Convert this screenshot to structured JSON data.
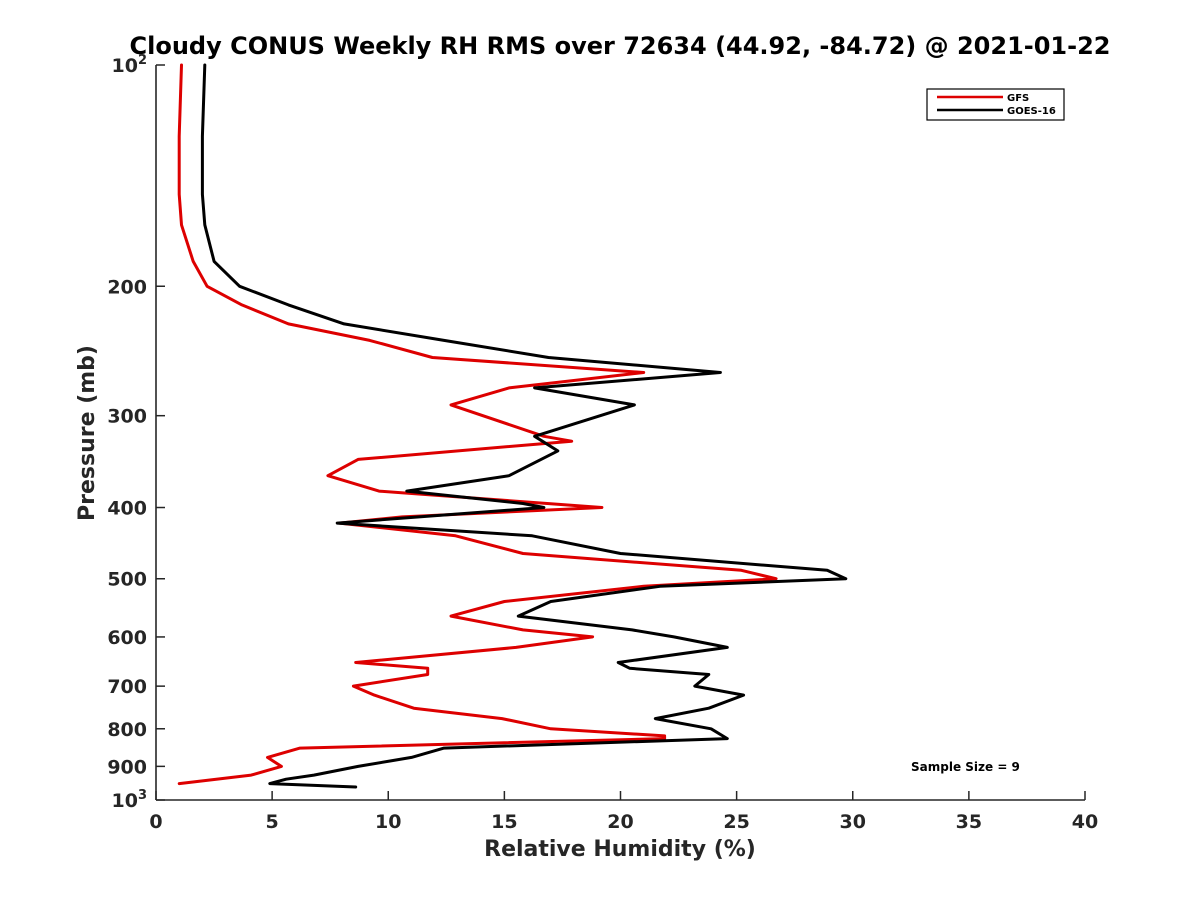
{
  "chart_data": {
    "type": "line",
    "title": "Cloudy CONUS Weekly RH RMS over 72634 (44.92, -84.72) @ 2021-01-22",
    "xlabel": "Relative Humidity (%)",
    "ylabel": "Pressure (mb)",
    "xlim": [
      0,
      40
    ],
    "ylim": [
      100,
      1000
    ],
    "yscale": "log",
    "y_reversed": true,
    "grid": false,
    "legend_position": "top-right",
    "annotation": "Sample Size = 9",
    "x_ticks": [
      "0",
      "5",
      "10",
      "15",
      "20",
      "25",
      "30",
      "35",
      "40"
    ],
    "y_ticks": [
      {
        "value": 100,
        "label": "10",
        "sup": "2"
      },
      {
        "value": 200,
        "label": "200",
        "sup": ""
      },
      {
        "value": 300,
        "label": "300",
        "sup": ""
      },
      {
        "value": 400,
        "label": "400",
        "sup": ""
      },
      {
        "value": 500,
        "label": "500",
        "sup": ""
      },
      {
        "value": 600,
        "label": "600",
        "sup": ""
      },
      {
        "value": 700,
        "label": "700",
        "sup": ""
      },
      {
        "value": 800,
        "label": "800",
        "sup": ""
      },
      {
        "value": 900,
        "label": "900",
        "sup": ""
      },
      {
        "value": 1000,
        "label": "10",
        "sup": "3"
      }
    ],
    "series": [
      {
        "name": "GFS",
        "color": "#dd0000",
        "points": [
          [
            1.1,
            100
          ],
          [
            1.0,
            125
          ],
          [
            1.0,
            150
          ],
          [
            1.1,
            165
          ],
          [
            1.6,
            185
          ],
          [
            2.2,
            200
          ],
          [
            3.7,
            212
          ],
          [
            5.7,
            225
          ],
          [
            9.2,
            237
          ],
          [
            11.9,
            250
          ],
          [
            21.0,
            262
          ],
          [
            15.2,
            275
          ],
          [
            12.7,
            290
          ],
          [
            16.7,
            320
          ],
          [
            17.9,
            325
          ],
          [
            8.7,
            344
          ],
          [
            7.4,
            362
          ],
          [
            9.6,
            380
          ],
          [
            19.2,
            400
          ],
          [
            10.6,
            412
          ],
          [
            7.9,
            420
          ],
          [
            12.9,
            437
          ],
          [
            15.8,
            462
          ],
          [
            25.2,
            487
          ],
          [
            26.7,
            500
          ],
          [
            21.0,
            512
          ],
          [
            15.0,
            537
          ],
          [
            12.7,
            562
          ],
          [
            15.8,
            587
          ],
          [
            18.8,
            600
          ],
          [
            15.5,
            620
          ],
          [
            8.6,
            650
          ],
          [
            11.7,
            662
          ],
          [
            11.7,
            675
          ],
          [
            8.5,
            700
          ],
          [
            9.4,
            720
          ],
          [
            11.1,
            750
          ],
          [
            14.9,
            775
          ],
          [
            17.0,
            800
          ],
          [
            21.9,
            818
          ],
          [
            21.9,
            825
          ],
          [
            6.2,
            850
          ],
          [
            4.8,
            875
          ],
          [
            5.4,
            900
          ],
          [
            4.1,
            925
          ],
          [
            1.0,
            950
          ]
        ]
      },
      {
        "name": "GOES-16",
        "color": "#000000",
        "points": [
          [
            2.1,
            100
          ],
          [
            2.0,
            125
          ],
          [
            2.0,
            150
          ],
          [
            2.1,
            165
          ],
          [
            2.5,
            185
          ],
          [
            3.6,
            200
          ],
          [
            5.7,
            212
          ],
          [
            8.1,
            225
          ],
          [
            12.4,
            237
          ],
          [
            16.9,
            250
          ],
          [
            24.3,
            262
          ],
          [
            16.3,
            275
          ],
          [
            20.6,
            290
          ],
          [
            16.3,
            320
          ],
          [
            17.3,
            335
          ],
          [
            15.2,
            362
          ],
          [
            10.8,
            380
          ],
          [
            15.8,
            395
          ],
          [
            16.7,
            400
          ],
          [
            7.8,
            420
          ],
          [
            16.2,
            437
          ],
          [
            20.0,
            462
          ],
          [
            28.9,
            487
          ],
          [
            29.7,
            500
          ],
          [
            21.7,
            512
          ],
          [
            17.0,
            537
          ],
          [
            15.6,
            562
          ],
          [
            20.5,
            587
          ],
          [
            22.3,
            600
          ],
          [
            24.6,
            620
          ],
          [
            19.9,
            650
          ],
          [
            20.4,
            662
          ],
          [
            23.8,
            675
          ],
          [
            23.2,
            700
          ],
          [
            25.3,
            720
          ],
          [
            23.8,
            750
          ],
          [
            21.5,
            775
          ],
          [
            23.9,
            800
          ],
          [
            24.6,
            825
          ],
          [
            12.4,
            850
          ],
          [
            11.0,
            875
          ],
          [
            8.7,
            900
          ],
          [
            6.8,
            925
          ],
          [
            5.6,
            937
          ],
          [
            4.9,
            950
          ],
          [
            8.6,
            960
          ]
        ]
      }
    ]
  }
}
